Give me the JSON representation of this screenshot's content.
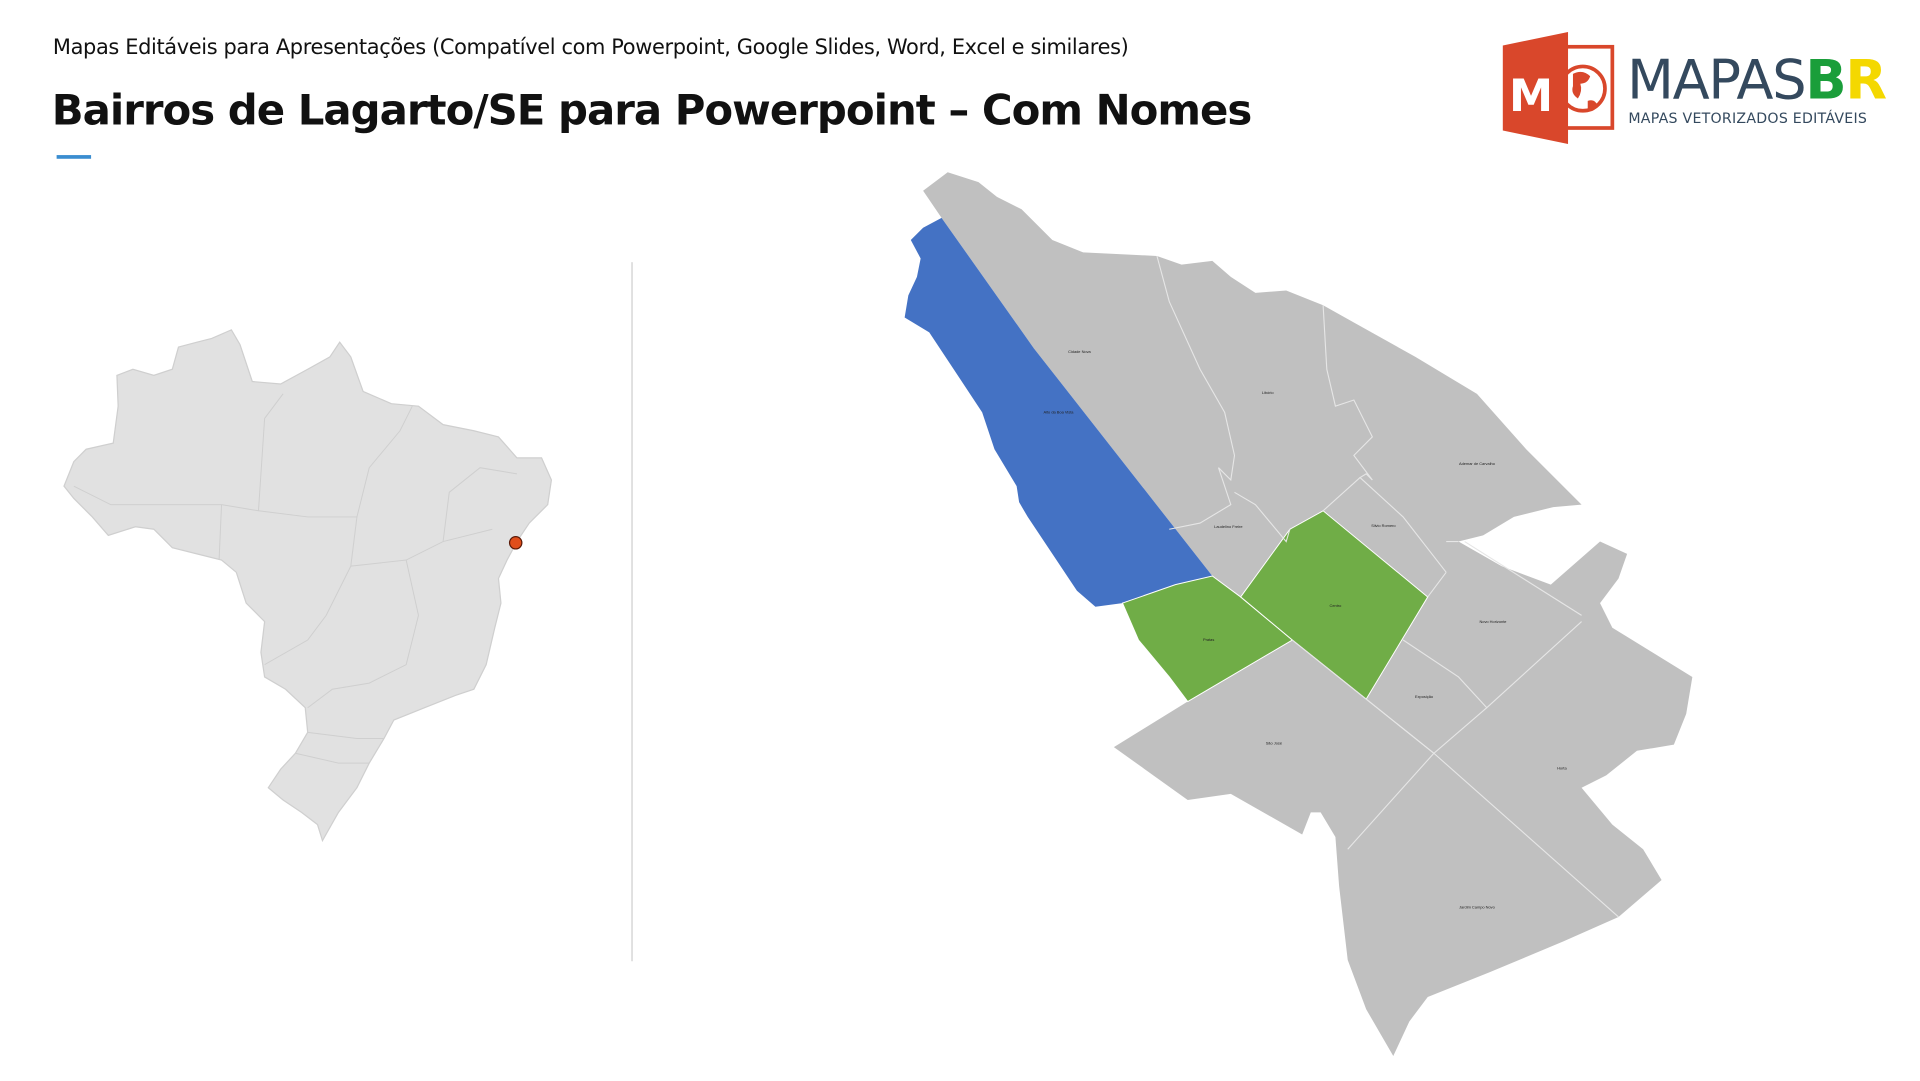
{
  "header": {
    "subtitle": "Mapas Editáveis para Apresentações (Compatível com Powerpoint, Google Slides, Word, Excel e similares)",
    "title": "Bairros de Lagarto/SE para Powerpoint – Com Nomes"
  },
  "logo": {
    "word_main": "MAPAS",
    "word_b": "B",
    "word_r": "R",
    "tagline": "MAPAS VETORIZADOS EDITÁVEIS",
    "icon_letter": "M"
  },
  "colors": {
    "base": "#c0c0c0",
    "highlight_blue": "#4472c4",
    "highlight_green": "#70ad47",
    "marker": "#e04e1b",
    "brazil": "#e1e1e1",
    "logo_orange": "#d9472b"
  },
  "locator": {
    "marker": "Lagarto/SE"
  },
  "map": {
    "neighborhoods": [
      {
        "name": "Cidade Nova",
        "fill": "base"
      },
      {
        "name": "Alto da Boa Vista",
        "fill": "highlight_blue"
      },
      {
        "name": "Libório",
        "fill": "base"
      },
      {
        "name": "Ademar de Carvalho",
        "fill": "base"
      },
      {
        "name": "Laudelino Freire",
        "fill": "base"
      },
      {
        "name": "Silvio Romero",
        "fill": "base"
      },
      {
        "name": "Centro",
        "fill": "highlight_green"
      },
      {
        "name": "Pratas",
        "fill": "highlight_green"
      },
      {
        "name": "Novo Horizonte",
        "fill": "base"
      },
      {
        "name": "Exposição",
        "fill": "base"
      },
      {
        "name": "São José",
        "fill": "base"
      },
      {
        "name": "Horta",
        "fill": "base"
      },
      {
        "name": "Jardim Campo Novo",
        "fill": "base"
      }
    ]
  }
}
